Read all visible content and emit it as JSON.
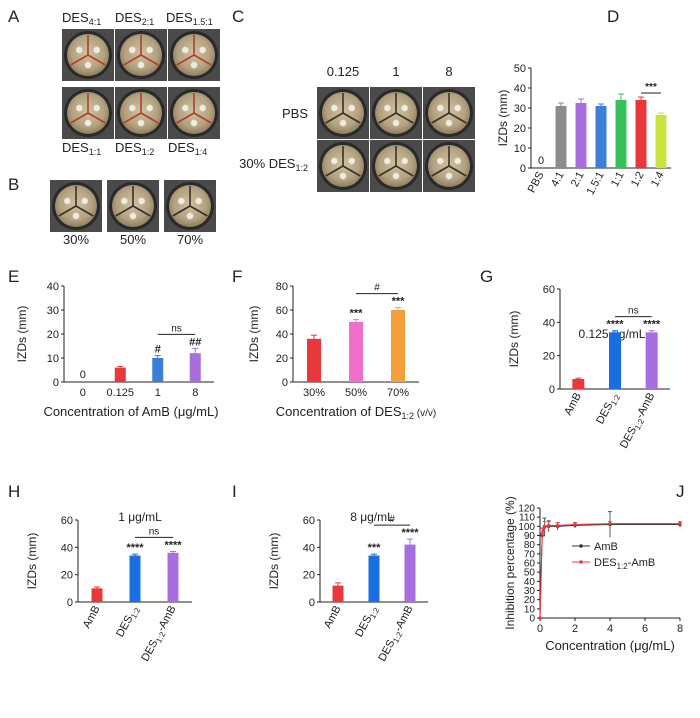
{
  "colors": {
    "gray": "#8c8c8c",
    "purple": "#a86ee0",
    "blue": "#3b7fd9",
    "green": "#38c15a",
    "red": "#e8383c",
    "lime": "#c8e440",
    "pink": "#ef6fc9",
    "orange": "#f3a03a",
    "bblue": "#1b6ee0",
    "plate_rim": "#2f2f2f",
    "plate_agar": "#b9a98a"
  },
  "panels": {
    "A": {
      "letter": "A",
      "top_labels": [
        {
          "base": "DES",
          "sub": "4:1"
        },
        {
          "base": "DES",
          "sub": "2:1"
        },
        {
          "base": "DES",
          "sub": "1.5:1"
        }
      ],
      "bottom_labels": [
        {
          "base": "DES",
          "sub": "1:1"
        },
        {
          "base": "DES",
          "sub": "1:2"
        },
        {
          "base": "DES",
          "sub": "1:4"
        }
      ]
    },
    "B": {
      "letter": "B",
      "labels": [
        "30%",
        "50%",
        "70%"
      ]
    },
    "C": {
      "letter": "C",
      "col_labels": [
        "0.125",
        "1",
        "8"
      ],
      "row1": "PBS",
      "row2_pre": "30% DES",
      "row2_sub": "1:2"
    }
  },
  "chart_data": [
    {
      "id": "D",
      "letter": "D",
      "type": "bar",
      "categories": [
        "PBS",
        "4:1",
        "2:1",
        "1.5:1",
        "1:1",
        "1:2",
        "1:4"
      ],
      "values": [
        0,
        31,
        32.5,
        31,
        34,
        34,
        26.5
      ],
      "errors": [
        0,
        1.5,
        2,
        1,
        3,
        1.5,
        1
      ],
      "value_labels": [
        "0",
        "",
        "",
        "",
        "",
        "",
        ""
      ],
      "ylabel": "IZDs (mm)",
      "ylim": [
        0,
        50
      ],
      "yticks": [
        0,
        10,
        20,
        30,
        40,
        50
      ],
      "significance": [
        {
          "from": 5,
          "to": 6,
          "label": "***"
        }
      ]
    },
    {
      "id": "E",
      "letter": "E",
      "type": "bar",
      "categories": [
        "0",
        "0.125",
        "1",
        "8"
      ],
      "values": [
        0,
        6,
        10,
        12
      ],
      "errors": [
        0,
        0.5,
        1,
        2
      ],
      "value_labels": [
        "0",
        "",
        "",
        ""
      ],
      "bar_marks": [
        "",
        "",
        "#",
        "##"
      ],
      "xlabel": "Concentration of AmB (μg/mL)",
      "ylabel": "IZDs (mm)",
      "ylim": [
        0,
        40
      ],
      "yticks": [
        0,
        10,
        20,
        30,
        40
      ],
      "significance": [
        {
          "from": 2,
          "to": 3,
          "label": "ns"
        }
      ]
    },
    {
      "id": "F",
      "letter": "F",
      "type": "bar",
      "categories": [
        "30%",
        "50%",
        "70%"
      ],
      "values": [
        36,
        50,
        60
      ],
      "errors": [
        3,
        2,
        2
      ],
      "bar_marks": [
        "",
        "***",
        "***"
      ],
      "xlabel_pre": "Concentration of DES",
      "xlabel_sub": "1:2",
      "xlabel_post": " (v/v)",
      "ylabel": "IZDs (mm)",
      "ylim": [
        0,
        80
      ],
      "yticks": [
        0,
        20,
        40,
        60,
        80
      ],
      "significance": [
        {
          "from": 1,
          "to": 2,
          "label": "#"
        }
      ]
    },
    {
      "id": "G",
      "letter": "G",
      "type": "bar",
      "title": "0.125 μg/mL",
      "categories": [
        "AmB",
        "DES1:2",
        "DES1:2-AmB"
      ],
      "values": [
        6,
        34,
        34
      ],
      "errors": [
        0.5,
        1,
        1
      ],
      "bar_marks": [
        "",
        "****",
        "****"
      ],
      "ylabel": "IZDs (mm)",
      "ylim": [
        0,
        60
      ],
      "yticks": [
        0,
        20,
        40,
        60
      ],
      "significance": [
        {
          "from": 1,
          "to": 2,
          "label": "ns"
        }
      ]
    },
    {
      "id": "H",
      "letter": "H",
      "type": "bar",
      "title": "1 μg/mL",
      "categories": [
        "AmB",
        "DES1:2",
        "DES1:2-AmB"
      ],
      "values": [
        10,
        34,
        36
      ],
      "errors": [
        1,
        1,
        1
      ],
      "bar_marks": [
        "",
        "****",
        "****"
      ],
      "ylabel": "IZDs (mm)",
      "ylim": [
        0,
        60
      ],
      "yticks": [
        0,
        20,
        40,
        60
      ],
      "significance": [
        {
          "from": 1,
          "to": 2,
          "label": "ns"
        }
      ]
    },
    {
      "id": "I",
      "letter": "I",
      "type": "bar",
      "title": "8 μg/mL",
      "categories": [
        "AmB",
        "DES1:2",
        "DES1:2-AmB"
      ],
      "values": [
        12,
        34,
        42
      ],
      "errors": [
        2,
        1,
        4
      ],
      "bar_marks": [
        "",
        "***",
        "****"
      ],
      "ylabel": "IZDs (mm)",
      "ylim": [
        0,
        60
      ],
      "yticks": [
        0,
        20,
        40,
        60
      ],
      "significance": [
        {
          "from": 1,
          "to": 2,
          "label": "#"
        }
      ]
    },
    {
      "id": "J",
      "letter": "J",
      "type": "line",
      "xlabel": "Concentration (μg/mL)",
      "ylabel": "Inhibition percentage (%)",
      "xlim": [
        0,
        8
      ],
      "ylim": [
        0,
        120
      ],
      "xticks": [
        0,
        2,
        4,
        6,
        8
      ],
      "yticks": [
        0,
        10,
        20,
        30,
        40,
        50,
        60,
        70,
        80,
        90,
        100,
        110,
        120
      ],
      "x": [
        0,
        0.125,
        0.25,
        0.5,
        1,
        2,
        4,
        8
      ],
      "series": [
        {
          "name": "AmB",
          "values": [
            0,
            90,
            99,
            100,
            100,
            101,
            102,
            102
          ],
          "errors": [
            0,
            8,
            10,
            6,
            4,
            3,
            14,
            3
          ]
        },
        {
          "name": "DES1:2-AmB",
          "values": [
            0,
            92,
            100,
            101,
            101,
            102,
            103,
            103
          ],
          "errors": [
            0,
            6,
            5,
            4,
            3,
            2,
            2,
            2
          ]
        }
      ]
    }
  ]
}
